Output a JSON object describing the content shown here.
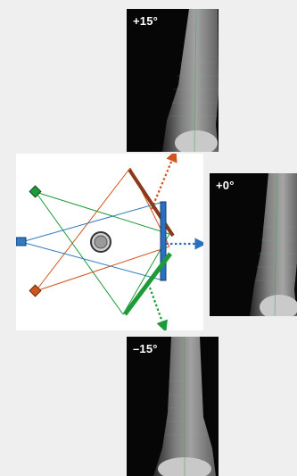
{
  "panels": {
    "top": {
      "angle_label": "+15°"
    },
    "middle": {
      "angle_label": "+0°"
    },
    "bottom": {
      "angle_label": "–15°"
    }
  },
  "colors": {
    "green_beam": "#1f9a3a",
    "orange_beam": "#d0541e",
    "blue_beam": "#2f7bbf",
    "detector_brown": "#8a3a1a",
    "detector_blue": "#2a6fc0",
    "background": "#efefef"
  },
  "icons": {
    "source_green": "diamond",
    "source_blue": "square",
    "source_orange": "diamond",
    "sample": "circle"
  }
}
